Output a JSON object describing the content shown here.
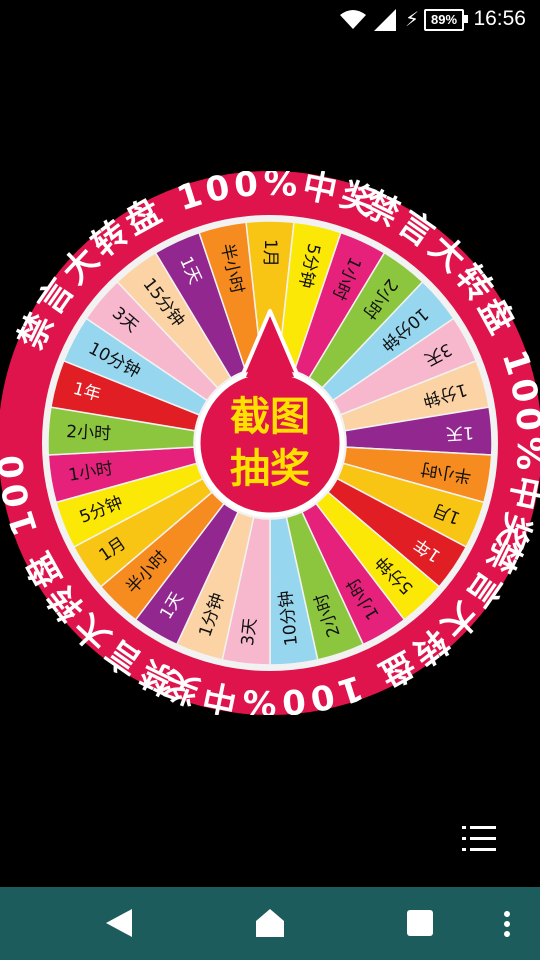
{
  "status_bar": {
    "time": "16:56",
    "battery_percent": "89%",
    "icons": [
      "wifi-icon",
      "signal-icon",
      "charging-icon",
      "battery-icon"
    ]
  },
  "wheel": {
    "ring_text_top": "禁言大转盘 100%中奖",
    "ring_text_right": "禁言大转盘 100%中奖",
    "ring_text_bottom": "禁言大转盘 100%中奖",
    "ring_text_left": "禁言大转盘 100%中奖",
    "center_line1": "截图",
    "center_line2": "抽奖",
    "segments": [
      {
        "label": "1月",
        "color": "#f9c515"
      },
      {
        "label": "5分钟",
        "color": "#fbe806"
      },
      {
        "label": "1小时",
        "color": "#e5217b"
      },
      {
        "label": "2小时",
        "color": "#8cc63f"
      },
      {
        "label": "10分钟",
        "color": "#96d6ef"
      },
      {
        "label": "3天",
        "color": "#f7b8cd"
      },
      {
        "label": "1分钟",
        "color": "#fbd3a5"
      },
      {
        "label": "1天",
        "color": "#92278f"
      },
      {
        "label": "半小时",
        "color": "#f68b1f"
      },
      {
        "label": "1月",
        "color": "#f9c515"
      },
      {
        "label": "1年",
        "color": "#e01e24"
      },
      {
        "label": "5分钟",
        "color": "#fbe806"
      },
      {
        "label": "1小时",
        "color": "#e5217b"
      },
      {
        "label": "2小时",
        "color": "#8cc63f"
      },
      {
        "label": "10分钟",
        "color": "#96d6ef"
      },
      {
        "label": "3天",
        "color": "#f7b8cd"
      },
      {
        "label": "1分钟",
        "color": "#fbd3a5"
      },
      {
        "label": "1天",
        "color": "#92278f"
      },
      {
        "label": "半小时",
        "color": "#f68b1f"
      },
      {
        "label": "1月",
        "color": "#f9c515"
      },
      {
        "label": "5分钟",
        "color": "#fbe806"
      },
      {
        "label": "1小时",
        "color": "#e5217b"
      },
      {
        "label": "2小时",
        "color": "#8cc63f"
      },
      {
        "label": "1年",
        "color": "#e01e24"
      },
      {
        "label": "10分钟",
        "color": "#96d6ef"
      },
      {
        "label": "3天",
        "color": "#f7b8cd"
      },
      {
        "label": "15分钟",
        "color": "#fbd3a5"
      },
      {
        "label": "1天",
        "color": "#92278f"
      },
      {
        "label": "半小时",
        "color": "#f68b1f"
      }
    ],
    "colors": {
      "ring": "#e0144c",
      "ring_text": "#ffffff",
      "inner_border": "#f2f2f2",
      "hub": "#e0144c",
      "hub_text": "#ffe100"
    }
  },
  "menu_icon": "list-menu-icon",
  "nav_bar": {
    "buttons": [
      "back-icon",
      "home-icon",
      "recents-icon",
      "overflow-icon"
    ],
    "color": "#1d5c5c"
  }
}
